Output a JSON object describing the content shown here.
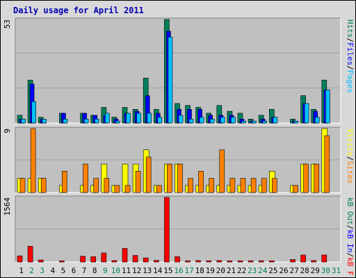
{
  "title": "Daily usage for April 2011",
  "colors": {
    "hits": "#00805c",
    "files": "#0000ff",
    "pages": "#00c0ff",
    "visits": "#ffff00",
    "sites": "#ff8000",
    "kbin": "#0000ff",
    "kbout": "#00805c",
    "kbf": "#ff0000",
    "weekend_day": "#00805c",
    "weekday_day": "#000000",
    "panel_bg": "#c0c0c0",
    "page_bg": "#d8d8d8"
  },
  "chart_data": [
    {
      "type": "bar",
      "panel": "hits-files-pages",
      "ymax_label": "53",
      "ylim": [
        0,
        53
      ],
      "legend_placement": "right, vertical",
      "legend": [
        "Pages",
        "Files",
        "Hits"
      ],
      "categories": [
        "1",
        "2",
        "3",
        "4",
        "5",
        "6",
        "7",
        "8",
        "9",
        "10",
        "11",
        "12",
        "13",
        "14",
        "15",
        "16",
        "17",
        "18",
        "19",
        "20",
        "21",
        "22",
        "23",
        "24",
        "25",
        "26",
        "27",
        "28",
        "29",
        "30",
        "31"
      ],
      "series": [
        {
          "name": "Hits",
          "values": [
            4,
            22,
            3,
            0,
            5,
            0,
            5,
            4,
            8,
            3,
            8,
            7,
            23,
            7,
            53,
            10,
            9,
            8,
            5,
            9,
            6,
            5,
            2,
            4,
            7,
            0,
            2,
            14,
            7,
            22,
            0
          ]
        },
        {
          "name": "Files",
          "values": [
            2,
            20,
            2,
            0,
            5,
            0,
            5,
            4,
            4,
            2,
            5,
            6,
            14,
            5,
            47,
            7,
            7,
            7,
            4,
            4,
            4,
            2,
            1,
            2,
            3,
            0,
            1,
            10,
            6,
            17,
            0
          ]
        },
        {
          "name": "Pages",
          "values": [
            2,
            11,
            2,
            0,
            2,
            0,
            2,
            2,
            5,
            1,
            5,
            5,
            5,
            3,
            44,
            4,
            2,
            3,
            2,
            3,
            3,
            1,
            1,
            1,
            3,
            0,
            1,
            10,
            3,
            17,
            0
          ]
        }
      ]
    },
    {
      "type": "bar",
      "panel": "visits-sites",
      "ymax_label": "9",
      "ylim": [
        0,
        9
      ],
      "legend_placement": "right, vertical",
      "legend": [
        "Sites",
        "Visits"
      ],
      "categories": [
        "1",
        "2",
        "3",
        "4",
        "5",
        "6",
        "7",
        "8",
        "9",
        "10",
        "11",
        "12",
        "13",
        "14",
        "15",
        "16",
        "17",
        "18",
        "19",
        "20",
        "21",
        "22",
        "23",
        "24",
        "25",
        "26",
        "27",
        "28",
        "29",
        "30",
        "31"
      ],
      "series": [
        {
          "name": "Visits",
          "values": [
            2,
            2,
            2,
            0,
            1,
            0,
            1,
            1,
            4,
            1,
            4,
            4,
            6,
            1,
            4,
            4,
            1,
            1,
            1,
            1,
            1,
            1,
            1,
            1,
            3,
            0,
            1,
            4,
            4,
            9,
            0
          ]
        },
        {
          "name": "Sites",
          "values": [
            2,
            9,
            2,
            0,
            3,
            0,
            4,
            2,
            2,
            1,
            1,
            3,
            5,
            1,
            4,
            4,
            2,
            3,
            2,
            6,
            2,
            2,
            2,
            2,
            2,
            0,
            1,
            4,
            4,
            8,
            0
          ]
        }
      ]
    },
    {
      "type": "bar",
      "panel": "kbytes",
      "ymax_label": "1564",
      "ylim": [
        0,
        1564
      ],
      "legend_placement": "right, vertical",
      "legend": [
        "kB F",
        "kB In",
        "kB Out"
      ],
      "categories": [
        "1",
        "2",
        "3",
        "4",
        "5",
        "6",
        "7",
        "8",
        "9",
        "10",
        "11",
        "12",
        "13",
        "14",
        "15",
        "16",
        "17",
        "18",
        "19",
        "20",
        "21",
        "22",
        "23",
        "24",
        "25",
        "26",
        "27",
        "28",
        "29",
        "30",
        "31"
      ],
      "series": [
        {
          "name": "kB F",
          "values": [
            150,
            380,
            50,
            0,
            30,
            0,
            140,
            130,
            220,
            35,
            330,
            160,
            100,
            40,
            1564,
            130,
            30,
            35,
            30,
            35,
            30,
            30,
            30,
            30,
            30,
            0,
            60,
            170,
            35,
            170,
            0
          ]
        }
      ]
    }
  ],
  "x_axis": {
    "labels": [
      "1",
      "2",
      "3",
      "4",
      "5",
      "6",
      "7",
      "8",
      "9",
      "10",
      "11",
      "12",
      "13",
      "14",
      "15",
      "16",
      "17",
      "18",
      "19",
      "20",
      "21",
      "22",
      "23",
      "24",
      "25",
      "26",
      "27",
      "28",
      "29",
      "30",
      "31"
    ],
    "weekend": [
      "2",
      "3",
      "9",
      "10",
      "16",
      "17",
      "23",
      "24",
      "30",
      "31"
    ]
  },
  "legends": {
    "top": [
      {
        "text": "Pages",
        "color": "#00c0ff"
      },
      {
        "text": "/",
        "color": "#000000"
      },
      {
        "text": "Files",
        "color": "#0000ff"
      },
      {
        "text": "/",
        "color": "#000000"
      },
      {
        "text": "Hits",
        "color": "#00805c"
      }
    ],
    "middle": [
      {
        "text": "Sites",
        "color": "#ff8000"
      },
      {
        "text": "/",
        "color": "#000000"
      },
      {
        "text": "Visits",
        "color": "#ffff00"
      }
    ],
    "bottom": [
      {
        "text": "kB F",
        "color": "#ff0000"
      },
      {
        "text": "/",
        "color": "#000000"
      },
      {
        "text": "kB In",
        "color": "#0000ff"
      },
      {
        "text": "/",
        "color": "#000000"
      },
      {
        "text": "kB Out",
        "color": "#00805c"
      }
    ]
  }
}
